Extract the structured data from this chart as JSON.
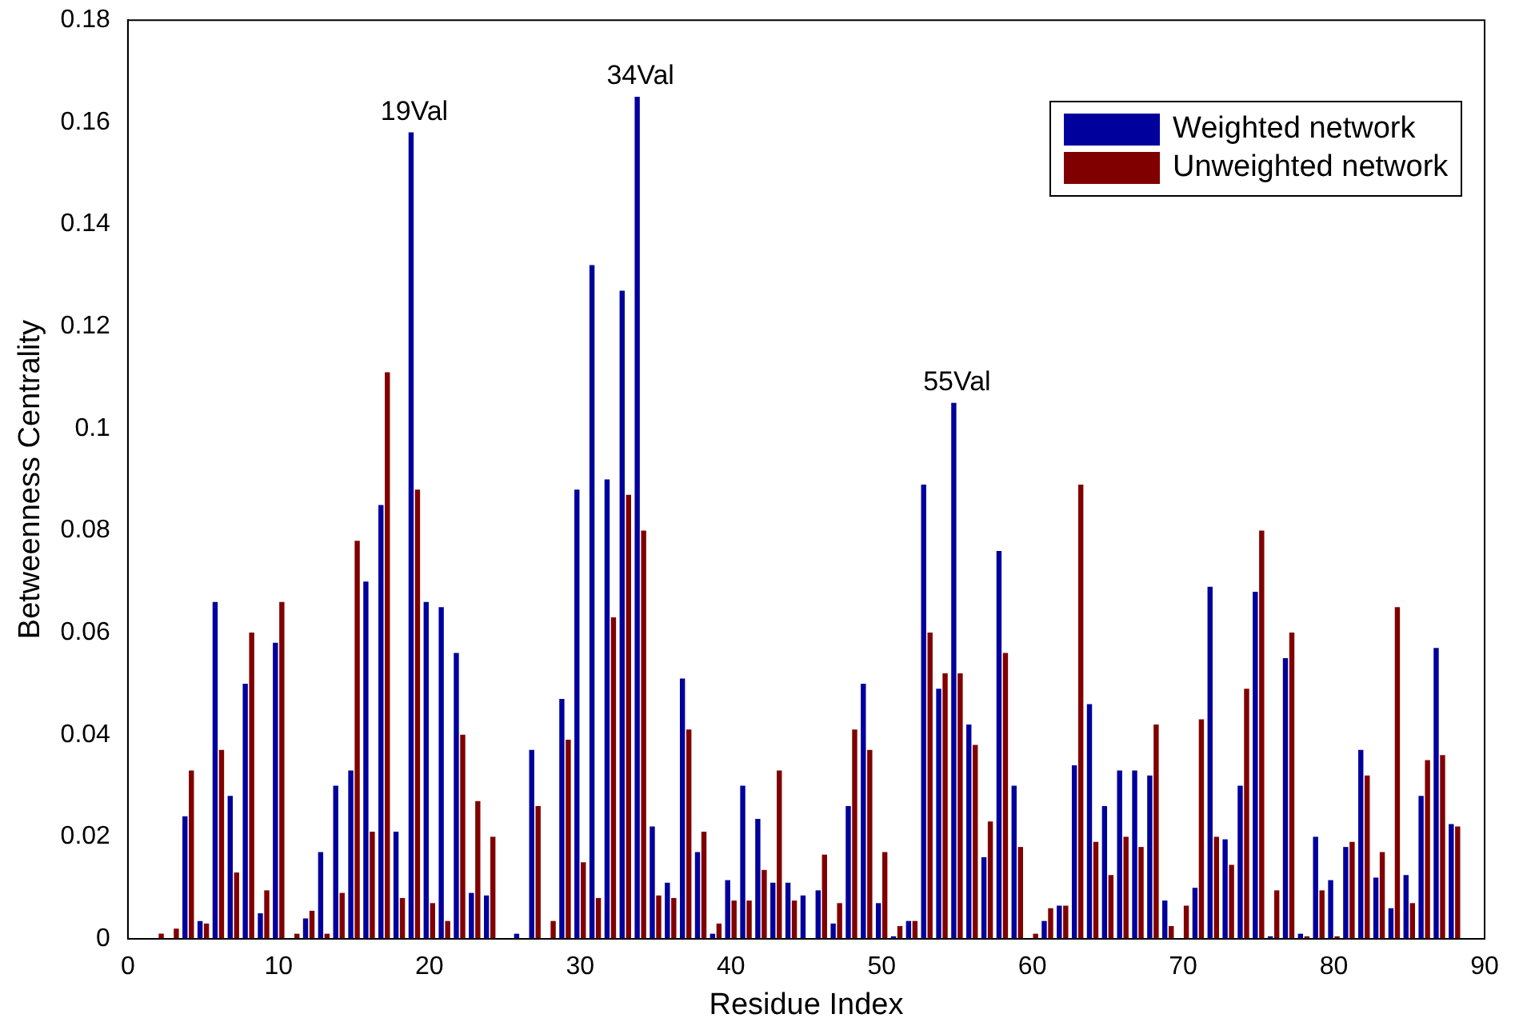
{
  "chart_data": {
    "type": "bar",
    "xlabel": "Residue Index",
    "ylabel": "Betweenness Centrality",
    "x": [
      1,
      2,
      3,
      4,
      5,
      6,
      7,
      8,
      9,
      10,
      11,
      12,
      13,
      14,
      15,
      16,
      17,
      18,
      19,
      20,
      21,
      22,
      23,
      24,
      25,
      26,
      27,
      28,
      29,
      30,
      31,
      32,
      33,
      34,
      35,
      36,
      37,
      38,
      39,
      40,
      41,
      42,
      43,
      44,
      45,
      46,
      47,
      48,
      49,
      50,
      51,
      52,
      53,
      54,
      55,
      56,
      57,
      58,
      59,
      60,
      61,
      62,
      63,
      64,
      65,
      66,
      67,
      68,
      69,
      70,
      71,
      72,
      73,
      74,
      75,
      76,
      77,
      78,
      79,
      80,
      81,
      82,
      83,
      84,
      85,
      86,
      87,
      88
    ],
    "series": [
      {
        "name": "Weighted network",
        "color": "#00009c",
        "values": [
          0,
          0,
          0,
          0.024,
          0.0035,
          0.066,
          0.028,
          0.05,
          0.005,
          0.058,
          0,
          0.004,
          0.017,
          0.03,
          0.033,
          0.07,
          0.085,
          0.021,
          0.158,
          0.066,
          0.065,
          0.056,
          0.009,
          0.0085,
          0,
          0.001,
          0.037,
          0,
          0.047,
          0.088,
          0.132,
          0.09,
          0.127,
          0.165,
          0.022,
          0.011,
          0.051,
          0.017,
          0.001,
          0.0115,
          0.03,
          0.0235,
          0.011,
          0.011,
          0.0085,
          0.0095,
          0.003,
          0.026,
          0.05,
          0.007,
          0.0005,
          0.0035,
          0.089,
          0.049,
          0.105,
          0.042,
          0.016,
          0.076,
          0.03,
          0,
          0.0035,
          0.0065,
          0.034,
          0.046,
          0.026,
          0.033,
          0.033,
          0.032,
          0.0075,
          0,
          0.01,
          0.069,
          0.0195,
          0.03,
          0.068,
          0.0005,
          0.055,
          0.001,
          0.02,
          0.0115,
          0.018,
          0.037,
          0.012,
          0.006,
          0.0125,
          0.028,
          0.057,
          0.0225
        ]
      },
      {
        "name": "Unweighted network",
        "color": "#800000",
        "values": [
          0,
          0.001,
          0.002,
          0.033,
          0.003,
          0.037,
          0.013,
          0.06,
          0.0095,
          0.066,
          0.001,
          0.0055,
          0.001,
          0.009,
          0.078,
          0.021,
          0.111,
          0.008,
          0.088,
          0.007,
          0.0035,
          0.04,
          0.027,
          0.02,
          0,
          0,
          0.026,
          0.0035,
          0.039,
          0.015,
          0.008,
          0.063,
          0.087,
          0.08,
          0.0085,
          0.008,
          0.041,
          0.021,
          0.003,
          0.0075,
          0.0075,
          0.0135,
          0.033,
          0.0075,
          0,
          0.0165,
          0.007,
          0.041,
          0.037,
          0.017,
          0.0025,
          0.0035,
          0.06,
          0.052,
          0.052,
          0.038,
          0.023,
          0.056,
          0.018,
          0.001,
          0.006,
          0.0065,
          0.089,
          0.019,
          0.0125,
          0.02,
          0.018,
          0.042,
          0.0025,
          0.0065,
          0.043,
          0.02,
          0.0145,
          0.049,
          0.08,
          0.0095,
          0.06,
          0.0005,
          0.0095,
          0.0005,
          0.019,
          0.032,
          0.017,
          0.065,
          0.007,
          0.035,
          0.036,
          0.022
        ]
      }
    ],
    "xlim": [
      0,
      90
    ],
    "xticks": [
      0,
      10,
      20,
      30,
      40,
      50,
      60,
      70,
      80,
      90
    ],
    "ylim": [
      0,
      0.18
    ],
    "yticks": [
      0,
      0.02,
      0.04,
      0.06,
      0.08,
      0.1,
      0.12,
      0.14,
      0.16,
      0.18
    ],
    "annotations": [
      {
        "text": "19Val",
        "x": 19,
        "y": 0.158
      },
      {
        "text": "34Val",
        "x": 34,
        "y": 0.165
      },
      {
        "text": "55Val",
        "x": 55,
        "y": 0.105
      }
    ],
    "grid": false,
    "legend": "top right"
  }
}
